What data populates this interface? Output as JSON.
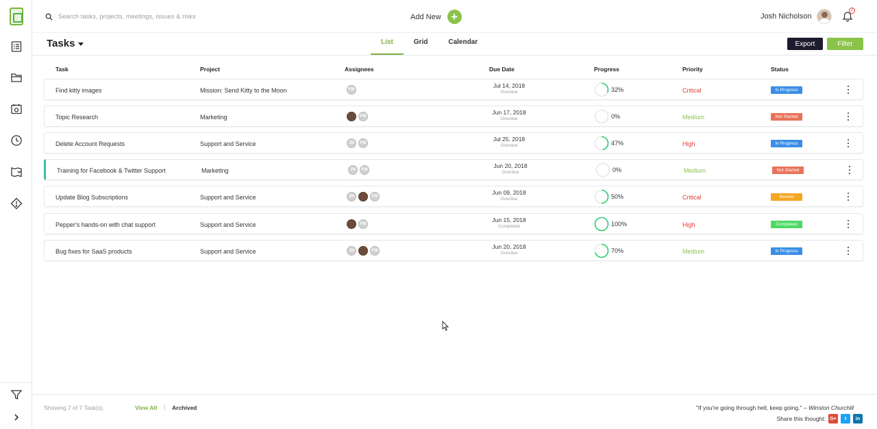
{
  "search": {
    "placeholder": "Search tasks, projects, meetings, issues & risks"
  },
  "header": {
    "add_new_label": "Add New",
    "add_icon_glyph": "+",
    "user_name": "Josh Nicholson",
    "notification_count": "2"
  },
  "page": {
    "title": "Tasks"
  },
  "tabs": [
    {
      "label": "List",
      "active": true
    },
    {
      "label": "Grid",
      "active": false
    },
    {
      "label": "Calendar",
      "active": false
    }
  ],
  "actions": {
    "export_label": "Export",
    "filter_label": "Filter"
  },
  "columns": [
    "Task",
    "Project",
    "Assignees",
    "Due Date",
    "Progress",
    "Priority",
    "Status"
  ],
  "rows": [
    {
      "task": "Find kitty images",
      "project": "Mission: Send Kitty to the Moon",
      "assignees": [
        "FW"
      ],
      "due": "Jul 14, 2018",
      "due_status": "Overdue",
      "progress": 32,
      "progress_label": "32%",
      "priority": "Critical",
      "status": "In Progress"
    },
    {
      "task": "Topic Research",
      "project": "Marketing",
      "assignees": [
        "photo",
        "FW"
      ],
      "due": "Jun 17, 2018",
      "due_status": "Overdue",
      "progress": 0,
      "progress_label": "0%",
      "priority": "Medium",
      "status": "Not Started"
    },
    {
      "task": "Delete Account Requests",
      "project": "Support and Service",
      "assignees": [
        "JN",
        "FW"
      ],
      "due": "Jul 25, 2018",
      "due_status": "Overdue",
      "progress": 47,
      "progress_label": "47%",
      "priority": "High",
      "status": "In Progress"
    },
    {
      "task": "Training for Facebook & Twitter Support",
      "project": "Marketing",
      "assignees": [
        "JN",
        "FW"
      ],
      "due": "Jun 20, 2018",
      "due_status": "Overdue",
      "progress": 0,
      "progress_label": "0%",
      "priority": "Medium",
      "status": "Not Started"
    },
    {
      "task": "Update Blog Subscriptions",
      "project": "Support and Service",
      "assignees": [
        "JN",
        "photo",
        "FW"
      ],
      "due": "Jun 09, 2018",
      "due_status": "Overdue",
      "progress": 50,
      "progress_label": "50%",
      "priority": "Critical",
      "status": "Review"
    },
    {
      "task": "Pepper's hands-on with chat support",
      "project": "Support and Service",
      "assignees": [
        "photo",
        "FW"
      ],
      "due": "Jun 15, 2018",
      "due_status": "Completed",
      "progress": 100,
      "progress_label": "100%",
      "priority": "High",
      "status": "Completed"
    },
    {
      "task": "Bug fixes for SaaS products",
      "project": "Support and Service",
      "assignees": [
        "JN",
        "photo",
        "FW"
      ],
      "due": "Jun 20, 2018",
      "due_status": "Overdue",
      "progress": 70,
      "progress_label": "70%",
      "priority": "Medium",
      "status": "In Progress"
    }
  ],
  "colors": {
    "accent": "#7cb342",
    "progress": "#2ecc71",
    "priority": {
      "Critical": "#e53935",
      "Medium": "#8bc34a",
      "High": "#e53935"
    },
    "status": {
      "In Progress": "#3a8ee6",
      "Not Started": "#e8735a",
      "Review": "#f5a623",
      "Completed": "#4cd964"
    }
  },
  "footer": {
    "showing": "Showing 7 of 7 Task(s).",
    "view_all": "View All",
    "separator": "|",
    "archived": "Archived",
    "quote_text": "\"If you're going through hell, keep going.\" –",
    "quote_author": "Winston Churchill",
    "share_label": "Share this thought:",
    "share_icons": {
      "gplus": "G+",
      "twitter": "t",
      "linkedin": "in"
    }
  }
}
